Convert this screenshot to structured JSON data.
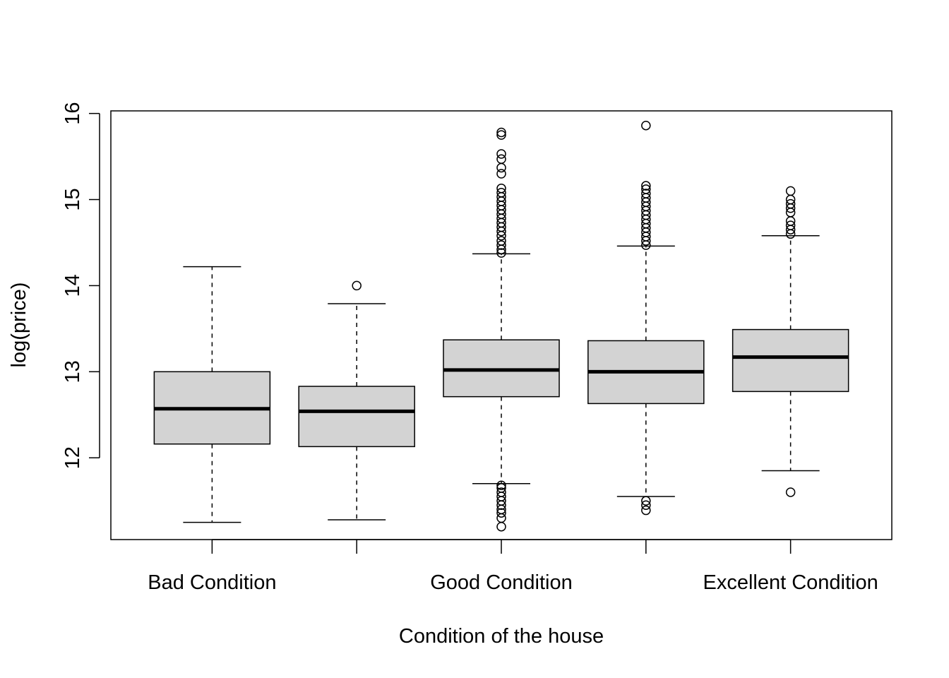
{
  "chart_data": {
    "type": "box",
    "xlabel": "Condition of the house",
    "ylabel": "log(price)",
    "ylim": [
      11.05,
      16.03
    ],
    "yticks": [
      12,
      13,
      14,
      15,
      16
    ],
    "ytick_labels": [
      "12",
      "13",
      "14",
      "15",
      "16"
    ],
    "categories": [
      "Bad Condition",
      "",
      "Good Condition",
      "",
      "Excellent Condition"
    ],
    "box_fill": "#d3d3d3",
    "boxes": [
      {
        "lower_whisker": 11.25,
        "q1": 12.16,
        "median": 12.57,
        "q3": 13.0,
        "upper_whisker": 14.22,
        "outliers": []
      },
      {
        "lower_whisker": 11.28,
        "q1": 12.13,
        "median": 12.54,
        "q3": 12.83,
        "upper_whisker": 13.79,
        "outliers": [
          14.0
        ]
      },
      {
        "lower_whisker": 11.7,
        "q1": 12.71,
        "median": 13.02,
        "q3": 13.37,
        "upper_whisker": 14.37,
        "outliers": [
          11.2,
          11.3,
          11.36,
          11.4,
          11.45,
          11.5,
          11.55,
          11.6,
          11.65,
          11.68,
          14.38,
          14.42,
          14.47,
          14.52,
          14.58,
          14.63,
          14.68,
          14.73,
          14.78,
          14.83,
          14.88,
          14.93,
          14.98,
          15.03,
          15.08,
          15.13,
          15.3,
          15.37,
          15.47,
          15.53,
          15.75,
          15.78
        ]
      },
      {
        "lower_whisker": 11.55,
        "q1": 12.63,
        "median": 13.0,
        "q3": 13.36,
        "upper_whisker": 14.46,
        "outliers": [
          11.39,
          11.45,
          11.5,
          14.47,
          14.52,
          14.57,
          14.62,
          14.67,
          14.72,
          14.77,
          14.82,
          14.87,
          14.92,
          14.97,
          15.02,
          15.07,
          15.12,
          15.16,
          15.86
        ]
      },
      {
        "lower_whisker": 11.85,
        "q1": 12.77,
        "median": 13.17,
        "q3": 13.49,
        "upper_whisker": 14.58,
        "outliers": [
          11.6,
          14.6,
          14.65,
          14.7,
          14.75,
          14.85,
          14.9,
          14.95,
          15.0,
          15.1
        ]
      }
    ]
  }
}
